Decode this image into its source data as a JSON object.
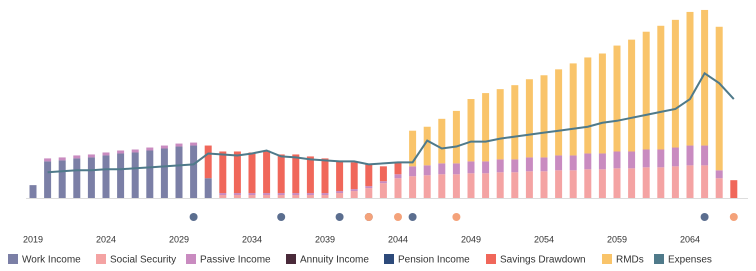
{
  "chart_data": {
    "type": "stacked-bar-line",
    "categories": [
      "2019",
      null,
      null,
      null,
      null,
      "2024",
      null,
      null,
      null,
      null,
      "2029",
      null,
      null,
      null,
      null,
      "2034",
      null,
      null,
      null,
      null,
      "2039",
      null,
      null,
      null,
      null,
      "2044",
      null,
      null,
      null,
      null,
      "2049",
      null,
      null,
      null,
      null,
      "2054",
      null,
      null,
      null,
      null,
      "2059",
      null,
      null,
      null,
      null,
      "2064",
      null,
      null,
      null
    ],
    "ylim": [
      0,
      195
    ],
    "series": [
      {
        "name": "Work Income",
        "color": "#7b7fa6",
        "values": [
          13,
          37,
          38,
          40,
          41,
          43,
          45,
          46,
          48,
          50,
          52,
          53,
          20,
          0,
          0,
          0,
          0,
          0,
          0,
          0,
          0,
          0,
          0,
          0,
          0,
          0,
          0,
          0,
          0,
          0,
          0,
          0,
          0,
          0,
          0,
          0,
          0,
          0,
          0,
          0,
          0,
          0,
          0,
          0,
          0,
          0,
          0,
          0,
          0
        ]
      },
      {
        "name": "Social Security",
        "color": "#f4a3a3",
        "values": [
          0,
          0,
          0,
          0,
          0,
          0,
          0,
          0,
          0,
          0,
          0,
          0,
          0,
          3,
          3,
          3,
          3,
          3,
          3,
          3,
          3,
          5,
          7,
          10,
          15,
          20,
          22,
          23,
          24,
          24,
          25,
          25,
          26,
          26,
          27,
          27,
          28,
          28,
          29,
          29,
          30,
          30,
          31,
          31,
          32,
          33,
          33,
          20,
          0
        ]
      },
      {
        "name": "Passive Income",
        "color": "#c98bc0",
        "values": [
          0,
          3,
          3,
          3,
          3,
          3,
          3,
          3,
          3,
          3,
          3,
          3,
          0,
          2,
          2,
          2,
          2,
          2,
          2,
          2,
          2,
          2,
          2,
          2,
          2,
          4,
          10,
          10,
          11,
          11,
          12,
          12,
          13,
          13,
          14,
          14,
          15,
          15,
          16,
          16,
          17,
          17,
          18,
          18,
          19,
          20,
          20,
          8,
          0
        ]
      },
      {
        "name": "Annuity Income",
        "color": "#4a2a3a",
        "values": [
          0,
          0,
          0,
          0,
          0,
          0,
          0,
          0,
          0,
          0,
          0,
          0,
          0,
          0,
          0,
          0,
          0,
          0,
          0,
          0,
          0,
          0,
          0,
          0,
          0,
          0,
          0,
          0,
          0,
          0,
          0,
          0,
          0,
          0,
          0,
          0,
          0,
          0,
          0,
          0,
          0,
          0,
          0,
          0,
          0,
          0,
          0,
          0,
          0
        ]
      },
      {
        "name": "Pension Income",
        "color": "#2d4a7a",
        "values": [
          0,
          0,
          0,
          0,
          0,
          0,
          0,
          0,
          0,
          0,
          0,
          0,
          0,
          0,
          0,
          0,
          0,
          0,
          0,
          0,
          0,
          0,
          0,
          0,
          0,
          0,
          0,
          0,
          0,
          0,
          0,
          0,
          0,
          0,
          0,
          0,
          0,
          0,
          0,
          0,
          0,
          0,
          0,
          0,
          0,
          0,
          0,
          0,
          0
        ]
      },
      {
        "name": "Savings Drawdown",
        "color": "#f0675a",
        "values": [
          0,
          0,
          0,
          0,
          0,
          0,
          0,
          0,
          0,
          0,
          0,
          0,
          33,
          42,
          42,
          41,
          43,
          39,
          39,
          37,
          35,
          30,
          27,
          22,
          15,
          12,
          0,
          0,
          0,
          0,
          0,
          0,
          0,
          0,
          0,
          0,
          0,
          0,
          0,
          0,
          0,
          0,
          0,
          0,
          0,
          0,
          0,
          0,
          18
        ]
      },
      {
        "name": "RMDs",
        "color": "#f9c46a",
        "values": [
          0,
          0,
          0,
          0,
          0,
          0,
          0,
          0,
          0,
          0,
          0,
          0,
          0,
          0,
          0,
          0,
          0,
          0,
          0,
          0,
          0,
          0,
          0,
          0,
          0,
          0,
          36,
          39,
          45,
          53,
          63,
          69,
          71,
          75,
          79,
          83,
          87,
          93,
          97,
          101,
          107,
          113,
          119,
          125,
          129,
          135,
          137,
          145,
          0
        ]
      },
      {
        "name": "Expenses",
        "color": "#4f7a8a",
        "type": "line",
        "values": [
          null,
          26,
          27,
          28,
          28,
          29,
          29,
          30,
          31,
          32,
          33,
          34,
          45,
          44,
          43,
          45,
          48,
          42,
          41,
          39,
          38,
          37,
          37,
          34,
          35,
          36,
          36,
          58,
          50,
          52,
          57,
          57,
          60,
          62,
          64,
          66,
          68,
          70,
          72,
          76,
          78,
          81,
          84,
          87,
          90,
          100,
          126,
          116,
          100
        ]
      }
    ],
    "events": [
      {
        "x": 2030,
        "color": "#5b6e8f"
      },
      {
        "x": 2036,
        "color": "#5b6e8f"
      },
      {
        "x": 2040,
        "color": "#5b6e8f"
      },
      {
        "x": 2042,
        "color": "#5b6e8f"
      },
      {
        "x": 2045,
        "color": "#5b6e8f"
      },
      {
        "x": 2065,
        "color": "#5b6e8f"
      },
      {
        "x": 2042,
        "color": "#f4a27a"
      },
      {
        "x": 2044,
        "color": "#f4a27a"
      },
      {
        "x": 2048,
        "color": "#f4a27a"
      },
      {
        "x": 2067,
        "color": "#f4a27a"
      }
    ]
  }
}
